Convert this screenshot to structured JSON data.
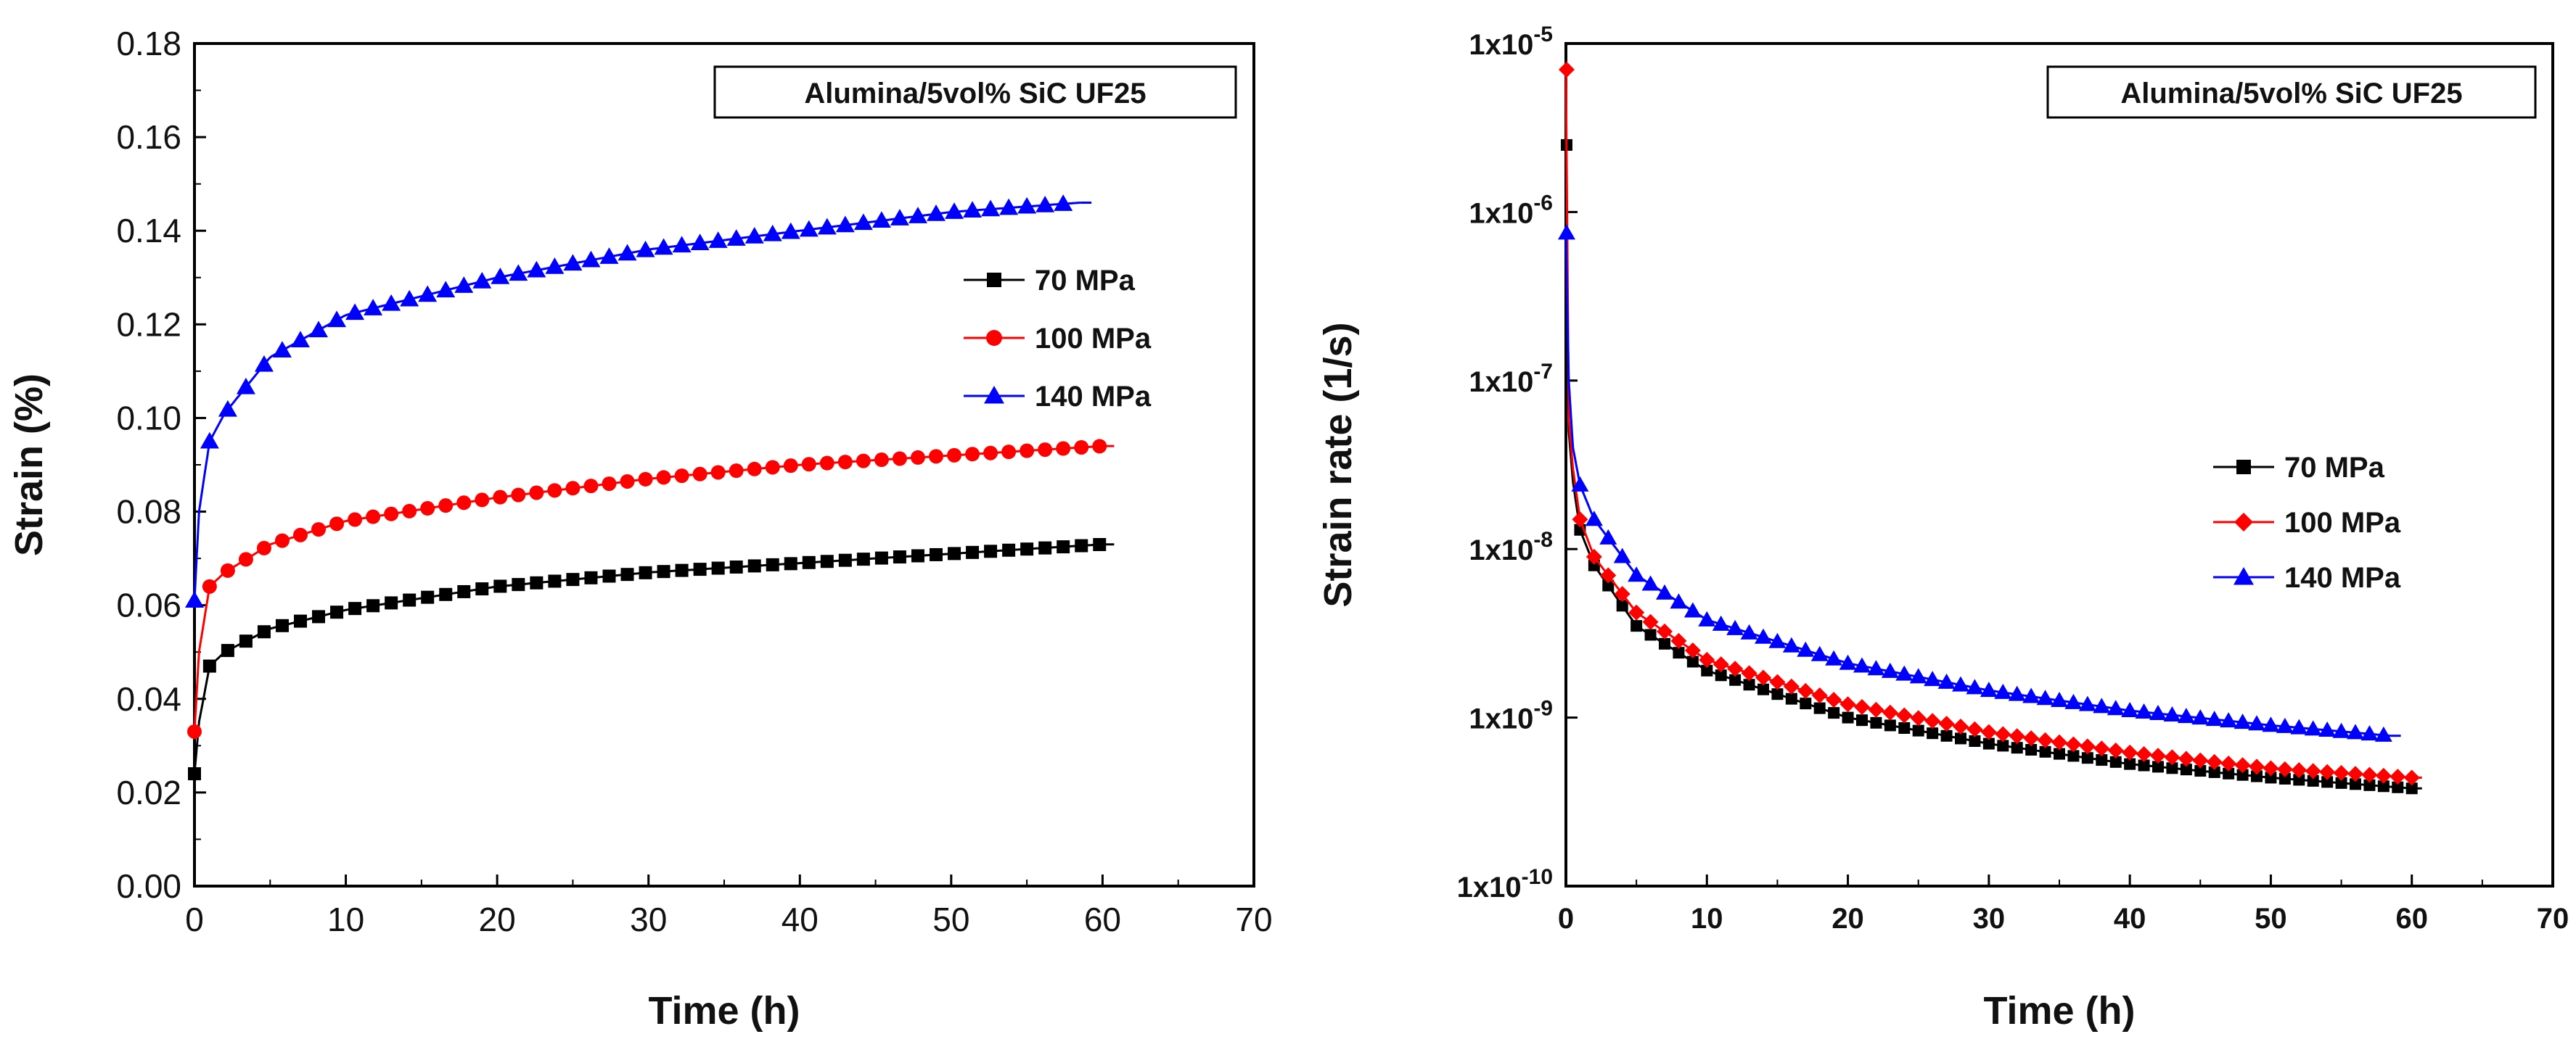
{
  "chart_data": [
    {
      "type": "line",
      "title": "Alumina/5vol% SiC UF25",
      "xlabel": "Time (h)",
      "ylabel": "Strain (%)",
      "xlim": [
        0,
        70
      ],
      "ylim": [
        0,
        0.18
      ],
      "xticks": [
        "0",
        "10",
        "20",
        "30",
        "40",
        "50",
        "60",
        "70"
      ],
      "yticks": [
        "0.00",
        "0.02",
        "0.04",
        "0.06",
        "0.08",
        "0.10",
        "0.12",
        "0.14",
        "0.16",
        "0.18"
      ],
      "legend_position": "upper-right",
      "series": [
        {
          "name": "70 MPa",
          "color": "#000000",
          "marker": "square",
          "x_end": 60,
          "anchors": [
            [
              0,
              0.024
            ],
            [
              0.3,
              0.035
            ],
            [
              1,
              0.047
            ],
            [
              2,
              0.05
            ],
            [
              5,
              0.055
            ],
            [
              10,
              0.059
            ],
            [
              20,
              0.064
            ],
            [
              30,
              0.067
            ],
            [
              40,
              0.069
            ],
            [
              50,
              0.071
            ],
            [
              60,
              0.073
            ]
          ]
        },
        {
          "name": "100 MPa",
          "color": "#ff0000",
          "marker": "circle",
          "x_end": 60,
          "anchors": [
            [
              0,
              0.033
            ],
            [
              0.3,
              0.05
            ],
            [
              1,
              0.064
            ],
            [
              2,
              0.067
            ],
            [
              5,
              0.073
            ],
            [
              10,
              0.078
            ],
            [
              20,
              0.083
            ],
            [
              30,
              0.087
            ],
            [
              40,
              0.09
            ],
            [
              50,
              0.092
            ],
            [
              60,
              0.094
            ]
          ]
        },
        {
          "name": "140 MPa",
          "color": "#0000ff",
          "marker": "triangle",
          "x_end": 58.5,
          "anchors": [
            [
              0,
              0.061
            ],
            [
              0.3,
              0.08
            ],
            [
              1,
              0.095
            ],
            [
              2,
              0.101
            ],
            [
              5,
              0.113
            ],
            [
              10,
              0.122
            ],
            [
              20,
              0.13
            ],
            [
              30,
              0.136
            ],
            [
              40,
              0.14
            ],
            [
              50,
              0.144
            ],
            [
              58.5,
              0.146
            ]
          ]
        }
      ]
    },
    {
      "type": "line",
      "title": "Alumina/5vol% SiC UF25",
      "xlabel": "Time (h)",
      "ylabel": "Strain rate (1/s)",
      "yscale": "log",
      "xlim": [
        0,
        70
      ],
      "ylim": [
        1e-10,
        1e-05
      ],
      "xticks": [
        "0",
        "10",
        "20",
        "30",
        "40",
        "50",
        "60",
        "70"
      ],
      "yticks": [
        {
          "base": "1x10",
          "exp": "-10"
        },
        {
          "base": "1x10",
          "exp": "-9"
        },
        {
          "base": "1x10",
          "exp": "-8"
        },
        {
          "base": "1x10",
          "exp": "-7"
        },
        {
          "base": "1x10",
          "exp": "-6"
        },
        {
          "base": "1x10",
          "exp": "-5"
        }
      ],
      "legend_position": "center-right",
      "series": [
        {
          "name": "70 MPa",
          "color": "#000000",
          "marker": "square",
          "x_end": 60,
          "anchors": [
            [
              0,
              2.5e-06
            ],
            [
              0.2,
              5e-08
            ],
            [
              0.5,
              2.5e-08
            ],
            [
              1,
              1.3e-08
            ],
            [
              2,
              8e-09
            ],
            [
              5,
              3.5e-09
            ],
            [
              10,
              1.9e-09
            ],
            [
              20,
              1e-09
            ],
            [
              30,
              7e-10
            ],
            [
              40,
              5.3e-10
            ],
            [
              50,
              4.4e-10
            ],
            [
              60,
              3.8e-10
            ]
          ]
        },
        {
          "name": "100 MPa",
          "color": "#ff0000",
          "marker": "diamond",
          "x_end": 60,
          "anchors": [
            [
              0,
              7e-06
            ],
            [
              0.2,
              6e-08
            ],
            [
              0.5,
              3e-08
            ],
            [
              1,
              1.5e-08
            ],
            [
              2,
              9e-09
            ],
            [
              5,
              4.2e-09
            ],
            [
              10,
              2.2e-09
            ],
            [
              20,
              1.2e-09
            ],
            [
              30,
              8.2e-10
            ],
            [
              40,
              6.2e-10
            ],
            [
              50,
              5e-10
            ],
            [
              60,
              4.4e-10
            ]
          ]
        },
        {
          "name": "140 MPa",
          "color": "#0000ff",
          "marker": "triangle",
          "x_end": 58.5,
          "anchors": [
            [
              0,
              7.5e-07
            ],
            [
              0.2,
              1e-07
            ],
            [
              0.5,
              4e-08
            ],
            [
              1,
              2.4e-08
            ],
            [
              2,
              1.5e-08
            ],
            [
              5,
              7e-09
            ],
            [
              10,
              3.8e-09
            ],
            [
              20,
              2.1e-09
            ],
            [
              30,
              1.45e-09
            ],
            [
              40,
              1.1e-09
            ],
            [
              50,
              9e-10
            ],
            [
              58.5,
              7.8e-10
            ]
          ]
        }
      ]
    }
  ]
}
